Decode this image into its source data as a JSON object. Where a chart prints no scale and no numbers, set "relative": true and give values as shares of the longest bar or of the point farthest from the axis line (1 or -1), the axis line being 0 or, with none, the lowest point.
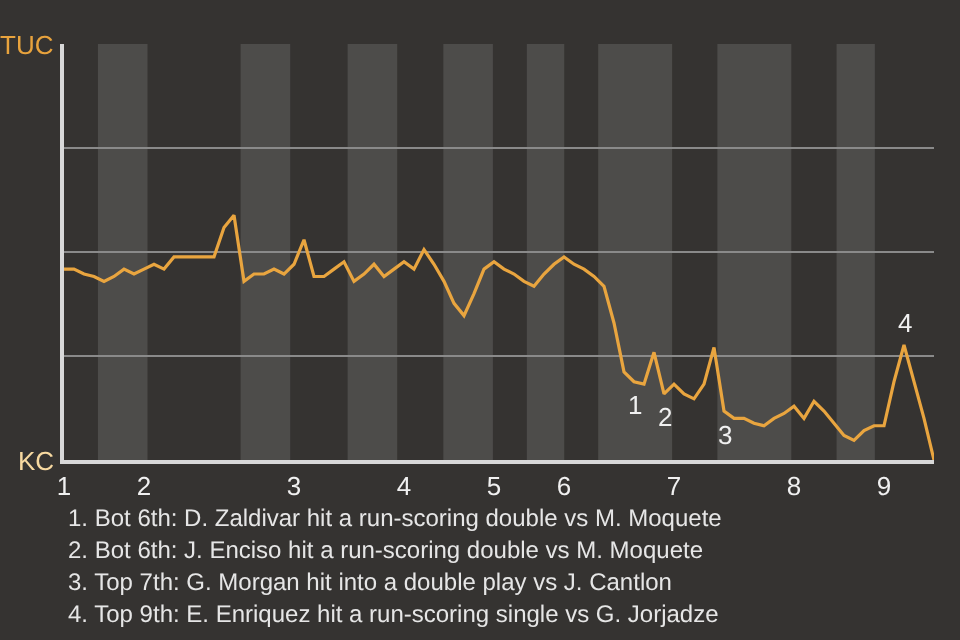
{
  "chart_data": {
    "type": "line",
    "relative": true,
    "categories": [
      "1",
      null,
      null,
      null,
      null,
      null,
      null,
      null,
      "2",
      null,
      null,
      null,
      null,
      null,
      null,
      null,
      null,
      null,
      null,
      null,
      null,
      null,
      null,
      "3",
      null,
      null,
      null,
      null,
      null,
      null,
      null,
      null,
      null,
      null,
      "4",
      null,
      null,
      null,
      null,
      null,
      null,
      null,
      null,
      "5",
      null,
      null,
      null,
      null,
      null,
      null,
      "6",
      null,
      null,
      null,
      null,
      null,
      null,
      null,
      null,
      null,
      null,
      "7",
      null,
      null,
      null,
      null,
      null,
      null,
      null,
      null,
      null,
      null,
      null,
      "8",
      null,
      null,
      null,
      null,
      null,
      null,
      null,
      null,
      "9",
      null,
      null,
      null,
      null,
      null
    ],
    "series": [
      {
        "color": "#e9a53f",
        "values": [
          0.78,
          0.78,
          0.76,
          0.75,
          0.73,
          0.75,
          0.78,
          0.76,
          0.78,
          0.8,
          0.78,
          0.83,
          0.83,
          0.83,
          0.83,
          0.83,
          0.95,
          1,
          0.73,
          0.76,
          0.76,
          0.78,
          0.76,
          0.8,
          0.9,
          0.75,
          0.75,
          0.78,
          0.81,
          0.73,
          0.76,
          0.8,
          0.75,
          0.78,
          0.81,
          0.78,
          0.86,
          0.8,
          0.73,
          0.64,
          0.59,
          0.68,
          0.78,
          0.81,
          0.78,
          0.76,
          0.73,
          0.71,
          0.76,
          0.8,
          0.83,
          0.8,
          0.78,
          0.75,
          0.71,
          0.56,
          0.36,
          0.32,
          0.31,
          0.44,
          0.27,
          0.31,
          0.27,
          0.25,
          0.31,
          0.46,
          0.2,
          0.17,
          0.17,
          0.15,
          0.14,
          0.17,
          0.19,
          0.22,
          0.17,
          0.24,
          0.2,
          0.15,
          0.1,
          0.08,
          0.12,
          0.14,
          0.14,
          0.32,
          0.47,
          0.32,
          0.17,
          0
        ]
      }
    ],
    "ref_lines": [
      {
        "axis": "y",
        "value": 0.425,
        "color": "#8a8a8a"
      },
      {
        "axis": "y",
        "value": 0.85,
        "color": "#8a8a8a"
      },
      {
        "axis": "y",
        "value": 1.275,
        "color": "#8a8a8a"
      }
    ],
    "marker": "none",
    "line_style": "solid",
    "annotations": [
      {
        "text": "1",
        "y": 0.32
      },
      {
        "text": "2",
        "y": 0.27
      },
      {
        "text": "3",
        "y": 0.2
      },
      {
        "text": "4",
        "y": 0.47
      },
      "TUC",
      "KC",
      "1. Bot 6th: D. Zaldivar hit a run-scoring double vs M. Moquete",
      "2. Bot 6th: J. Enciso hit a run-scoring double vs M. Moquete",
      "3. Top 7th: G. Morgan hit into a double play vs J. Cantlon",
      "4. Top 9th: E. Enriquez hit a run-scoring single vs G. Jorjadze"
    ]
  }
}
